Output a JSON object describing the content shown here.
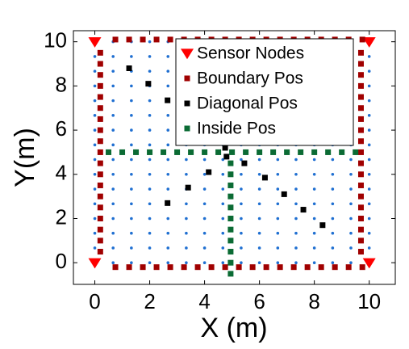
{
  "chart_data": {
    "type": "scatter",
    "xlabel": "X (m)",
    "ylabel": "Y(m)",
    "xlim": [
      -0.78,
      10.95
    ],
    "ylim": [
      -0.98,
      10.5
    ],
    "xticks": [
      0,
      2,
      4,
      6,
      8,
      10
    ],
    "yticks": [
      0,
      2,
      4,
      6,
      8,
      10
    ],
    "legend": "upper right",
    "grid_points": {
      "color": "#1f6fd1",
      "x": [
        0,
        0.667,
        1.333,
        2,
        2.667,
        3.333,
        4,
        4.667,
        5.333,
        6,
        6.667,
        7.333,
        8,
        8.667,
        9.333,
        10
      ],
      "y": [
        0,
        0.667,
        1.333,
        2,
        2.667,
        3.333,
        4,
        4.667,
        5.333,
        6,
        6.667,
        7.333,
        8,
        8.667,
        9.333,
        10
      ]
    },
    "series": [
      {
        "name": "Sensor Nodes",
        "color": "#ff0000",
        "marker": "triangle",
        "x": [
          0,
          0,
          10,
          10
        ],
        "y": [
          0,
          10,
          0,
          10
        ]
      },
      {
        "name": "Boundary Pos",
        "color": "#a00000",
        "marker": "square",
        "x": [
          0.75,
          1.25,
          1.75,
          2.25,
          2.75,
          3.25,
          3.75,
          4.25,
          4.75,
          5.25,
          5.75,
          6.25,
          6.75,
          7.25,
          7.75,
          8.25,
          8.75,
          9.25,
          9.75,
          9.7,
          9.7,
          9.7,
          9.7,
          9.7,
          9.7,
          9.7,
          9.7,
          9.7,
          9.7,
          9.7,
          9.7,
          9.7,
          9.7,
          9.7,
          9.7,
          9.7,
          9.7,
          9.7,
          9.75,
          9.25,
          8.75,
          8.25,
          7.75,
          7.25,
          6.75,
          6.25,
          5.75,
          5.25,
          4.75,
          4.25,
          3.75,
          3.25,
          2.75,
          2.25,
          1.75,
          1.25,
          0.75,
          0.2,
          0.2,
          0.2,
          0.2,
          0.2,
          0.2,
          0.2,
          0.2,
          0.2,
          0.2,
          0.2,
          0.2,
          0.2,
          0.2,
          0.2,
          0.2,
          0.2,
          0.2,
          0.2
        ],
        "y": [
          10.1,
          10.1,
          10.1,
          10.1,
          10.1,
          10.1,
          10.1,
          10.1,
          10.1,
          10.1,
          10.1,
          10.1,
          10.1,
          10.1,
          10.1,
          10.1,
          10.1,
          10.1,
          10.1,
          9.5,
          9,
          8.5,
          8,
          7.5,
          7,
          6.5,
          6,
          5.5,
          5,
          4.5,
          4,
          3.5,
          3,
          2.5,
          2,
          1.5,
          1,
          0.5,
          -0.2,
          -0.2,
          -0.2,
          -0.2,
          -0.2,
          -0.2,
          -0.2,
          -0.2,
          -0.2,
          -0.2,
          -0.2,
          -0.2,
          -0.2,
          -0.2,
          -0.2,
          -0.2,
          -0.2,
          -0.2,
          -0.2,
          0.5,
          1,
          1.5,
          2,
          2.5,
          3,
          3.5,
          4,
          4.5,
          5,
          5.5,
          6,
          6.5,
          7,
          7.5,
          8,
          8.5,
          9,
          9.5
        ]
      },
      {
        "name": "Diagonal Pos",
        "color": "#000000",
        "marker": "square",
        "x": [
          1.25,
          1.95,
          2.65,
          4.75,
          4.8,
          5.45,
          6.2,
          6.9,
          7.6,
          8.3,
          2.65,
          3.4,
          4.15
        ],
        "y": [
          8.8,
          8.1,
          7.35,
          5.2,
          4.8,
          4.5,
          3.85,
          3.1,
          2.4,
          1.7,
          2.7,
          3.4,
          4.1
        ]
      },
      {
        "name": "Inside Pos",
        "color": "#0b6b34",
        "marker": "square",
        "x": [
          0.5,
          1,
          1.5,
          2,
          2.5,
          3,
          3.5,
          4,
          4.5,
          5,
          5.5,
          6,
          6.5,
          7,
          7.5,
          8,
          8.5,
          9,
          9.5,
          4.95,
          4.95,
          4.95,
          4.95,
          4.95,
          4.95,
          4.95,
          4.95,
          4.95,
          4.95,
          4.95
        ],
        "y": [
          5,
          5,
          5,
          5,
          5,
          5,
          5,
          5,
          5,
          5,
          5,
          5,
          5,
          5,
          5,
          5,
          5,
          5,
          5,
          4.5,
          4,
          3.5,
          3,
          2.5,
          2,
          1.5,
          1,
          0.5,
          0,
          -0.5
        ]
      }
    ]
  }
}
